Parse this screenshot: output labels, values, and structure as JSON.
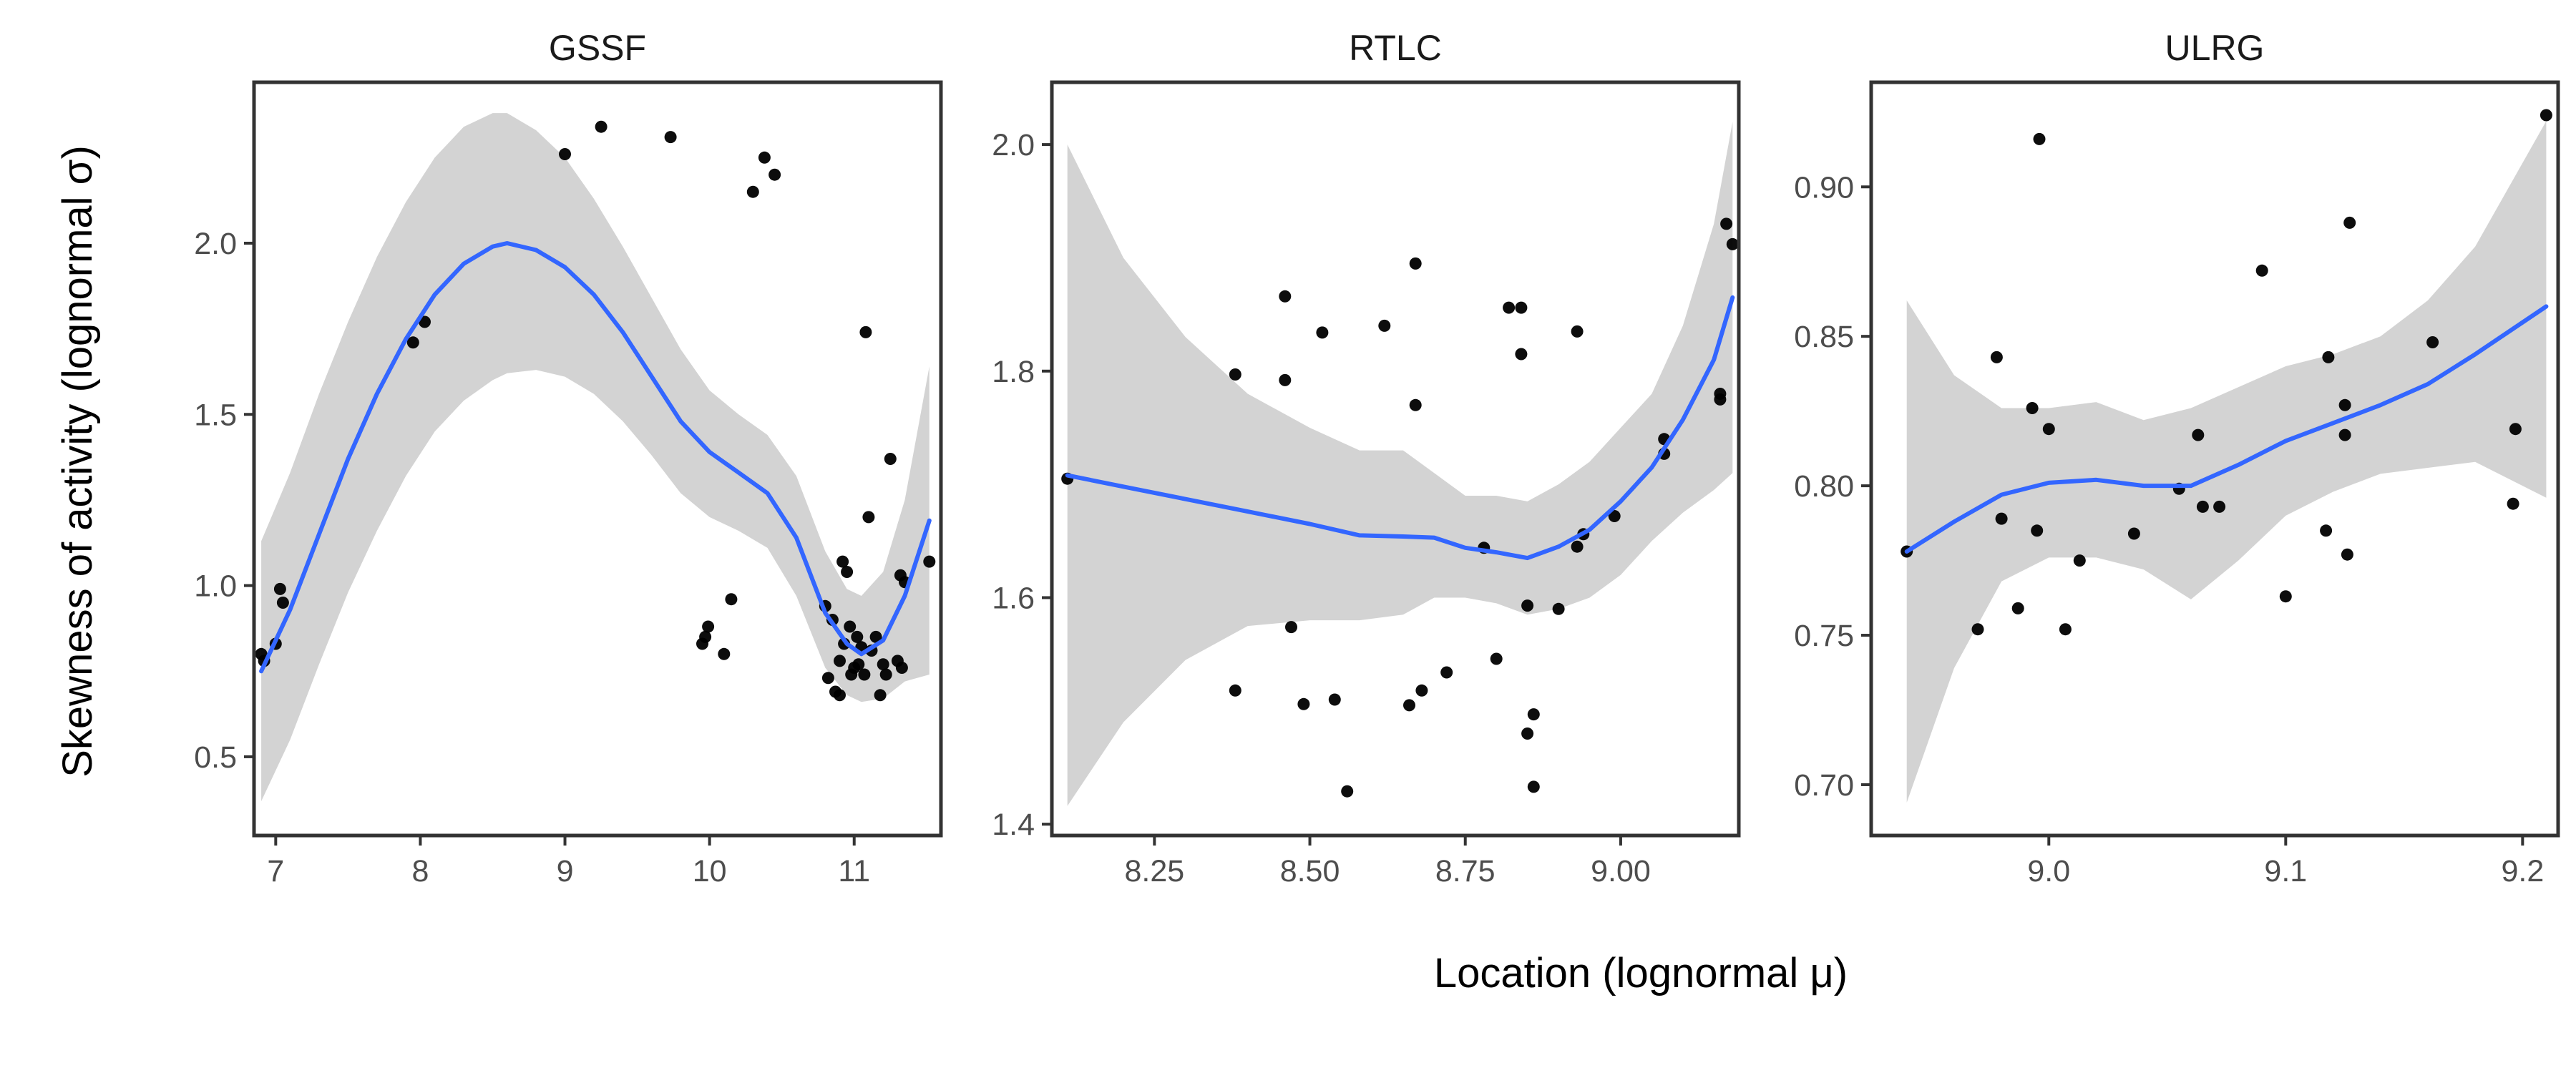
{
  "chart_data": {
    "type": "scatter",
    "xlabel": "Location (lognormal μ)",
    "ylabel": "Skewness of activity (lognormal σ)",
    "colors": {
      "points": "#000000",
      "smooth": "#3366ff",
      "band": "#d3d3d3",
      "frame": "#333333"
    },
    "grid": false,
    "legend": "none",
    "panels": [
      {
        "title": "GSSF",
        "xlim": [
          6.85,
          11.6
        ],
        "ylim": [
          0.27,
          2.47
        ],
        "xticks": [
          7,
          8,
          9,
          10,
          11
        ],
        "xtick_labels": [
          "7",
          "8",
          "9",
          "10",
          "11"
        ],
        "yticks": [
          0.5,
          1.0,
          1.5,
          2.0
        ],
        "ytick_labels": [
          "0.5",
          "1.0",
          "1.5",
          "2.0"
        ],
        "points": [
          [
            6.9,
            0.8
          ],
          [
            6.92,
            0.78
          ],
          [
            7.0,
            0.83
          ],
          [
            7.03,
            0.99
          ],
          [
            7.05,
            0.95
          ],
          [
            7.95,
            1.71
          ],
          [
            8.03,
            1.77
          ],
          [
            9.0,
            2.26
          ],
          [
            9.25,
            2.34
          ],
          [
            9.73,
            2.31
          ],
          [
            9.95,
            0.83
          ],
          [
            9.97,
            0.85
          ],
          [
            9.99,
            0.88
          ],
          [
            10.1,
            0.8
          ],
          [
            10.15,
            0.96
          ],
          [
            10.3,
            2.15
          ],
          [
            10.38,
            2.25
          ],
          [
            10.45,
            2.2
          ],
          [
            10.8,
            0.94
          ],
          [
            10.82,
            0.73
          ],
          [
            10.85,
            0.9
          ],
          [
            10.87,
            0.69
          ],
          [
            10.9,
            0.68
          ],
          [
            10.9,
            0.78
          ],
          [
            10.92,
            1.07
          ],
          [
            10.93,
            0.83
          ],
          [
            10.95,
            1.04
          ],
          [
            10.97,
            0.88
          ],
          [
            10.98,
            0.74
          ],
          [
            11.0,
            0.76
          ],
          [
            11.02,
            0.85
          ],
          [
            11.03,
            0.77
          ],
          [
            11.05,
            0.82
          ],
          [
            11.07,
            0.74
          ],
          [
            11.08,
            1.74
          ],
          [
            11.1,
            1.2
          ],
          [
            11.12,
            0.81
          ],
          [
            11.15,
            0.85
          ],
          [
            11.18,
            0.68
          ],
          [
            11.2,
            0.77
          ],
          [
            11.22,
            0.74
          ],
          [
            11.25,
            1.37
          ],
          [
            11.3,
            0.78
          ],
          [
            11.32,
            1.03
          ],
          [
            11.33,
            0.76
          ],
          [
            11.35,
            1.01
          ],
          [
            11.52,
            1.07
          ]
        ],
        "smooth": [
          [
            6.9,
            0.75
          ],
          [
            7.1,
            0.93
          ],
          [
            7.3,
            1.15
          ],
          [
            7.5,
            1.37
          ],
          [
            7.7,
            1.56
          ],
          [
            7.9,
            1.72
          ],
          [
            8.1,
            1.85
          ],
          [
            8.3,
            1.94
          ],
          [
            8.5,
            1.99
          ],
          [
            8.6,
            2.0
          ],
          [
            8.8,
            1.98
          ],
          [
            9.0,
            1.93
          ],
          [
            9.2,
            1.85
          ],
          [
            9.4,
            1.74
          ],
          [
            9.6,
            1.61
          ],
          [
            9.8,
            1.48
          ],
          [
            10.0,
            1.39
          ],
          [
            10.2,
            1.33
          ],
          [
            10.4,
            1.27
          ],
          [
            10.6,
            1.14
          ],
          [
            10.8,
            0.92
          ],
          [
            10.95,
            0.83
          ],
          [
            11.05,
            0.8
          ],
          [
            11.2,
            0.84
          ],
          [
            11.35,
            0.97
          ],
          [
            11.52,
            1.19
          ]
        ],
        "band_upper": [
          [
            6.9,
            1.13
          ],
          [
            7.1,
            1.33
          ],
          [
            7.3,
            1.56
          ],
          [
            7.5,
            1.77
          ],
          [
            7.7,
            1.96
          ],
          [
            7.9,
            2.12
          ],
          [
            8.1,
            2.25
          ],
          [
            8.3,
            2.34
          ],
          [
            8.5,
            2.38
          ],
          [
            8.6,
            2.38
          ],
          [
            8.8,
            2.33
          ],
          [
            9.0,
            2.25
          ],
          [
            9.2,
            2.13
          ],
          [
            9.4,
            1.99
          ],
          [
            9.6,
            1.84
          ],
          [
            9.8,
            1.69
          ],
          [
            10.0,
            1.57
          ],
          [
            10.2,
            1.5
          ],
          [
            10.4,
            1.44
          ],
          [
            10.6,
            1.32
          ],
          [
            10.8,
            1.1
          ],
          [
            10.95,
            0.99
          ],
          [
            11.05,
            0.97
          ],
          [
            11.2,
            1.04
          ],
          [
            11.35,
            1.25
          ],
          [
            11.52,
            1.64
          ]
        ],
        "band_lower": [
          [
            6.9,
            0.37
          ],
          [
            7.1,
            0.55
          ],
          [
            7.3,
            0.77
          ],
          [
            7.5,
            0.98
          ],
          [
            7.7,
            1.16
          ],
          [
            7.9,
            1.32
          ],
          [
            8.1,
            1.45
          ],
          [
            8.3,
            1.54
          ],
          [
            8.5,
            1.6
          ],
          [
            8.6,
            1.62
          ],
          [
            8.8,
            1.63
          ],
          [
            9.0,
            1.61
          ],
          [
            9.2,
            1.56
          ],
          [
            9.4,
            1.48
          ],
          [
            9.6,
            1.38
          ],
          [
            9.8,
            1.27
          ],
          [
            10.0,
            1.2
          ],
          [
            10.2,
            1.16
          ],
          [
            10.4,
            1.11
          ],
          [
            10.6,
            0.97
          ],
          [
            10.8,
            0.76
          ],
          [
            10.95,
            0.68
          ],
          [
            11.05,
            0.66
          ],
          [
            11.2,
            0.67
          ],
          [
            11.35,
            0.72
          ],
          [
            11.52,
            0.74
          ]
        ]
      },
      {
        "title": "RTLC",
        "xlim": [
          8.085,
          9.19
        ],
        "ylim": [
          1.39,
          2.055
        ],
        "xticks": [
          8.25,
          8.5,
          8.75,
          9.0
        ],
        "xtick_labels": [
          "8.25",
          "8.50",
          "8.75",
          "9.00"
        ],
        "yticks": [
          1.4,
          1.6,
          1.8,
          2.0
        ],
        "ytick_labels": [
          "1.4",
          "1.6",
          "1.8",
          "2.0"
        ],
        "points": [
          [
            8.11,
            1.705
          ],
          [
            8.38,
            1.797
          ],
          [
            8.38,
            1.518
          ],
          [
            8.46,
            1.866
          ],
          [
            8.46,
            1.792
          ],
          [
            8.47,
            1.574
          ],
          [
            8.49,
            1.506
          ],
          [
            8.52,
            1.834
          ],
          [
            8.54,
            1.51
          ],
          [
            8.56,
            1.429
          ],
          [
            8.62,
            1.84
          ],
          [
            8.66,
            1.505
          ],
          [
            8.67,
            1.77
          ],
          [
            8.67,
            1.895
          ],
          [
            8.68,
            1.518
          ],
          [
            8.72,
            1.534
          ],
          [
            8.78,
            1.644
          ],
          [
            8.8,
            1.546
          ],
          [
            8.82,
            1.856
          ],
          [
            8.84,
            1.856
          ],
          [
            8.84,
            1.815
          ],
          [
            8.85,
            1.48
          ],
          [
            8.85,
            1.593
          ],
          [
            8.86,
            1.497
          ],
          [
            8.86,
            1.433
          ],
          [
            8.9,
            1.59
          ],
          [
            8.93,
            1.835
          ],
          [
            8.93,
            1.645
          ],
          [
            8.94,
            1.656
          ],
          [
            8.99,
            1.672
          ],
          [
            9.07,
            1.727
          ],
          [
            9.07,
            1.74
          ],
          [
            9.16,
            1.775
          ],
          [
            9.16,
            1.78
          ],
          [
            9.17,
            1.93
          ],
          [
            9.18,
            1.912
          ]
        ],
        "smooth": [
          [
            8.11,
            1.708
          ],
          [
            8.2,
            1.698
          ],
          [
            8.3,
            1.687
          ],
          [
            8.4,
            1.676
          ],
          [
            8.5,
            1.665
          ],
          [
            8.58,
            1.655
          ],
          [
            8.65,
            1.654
          ],
          [
            8.7,
            1.653
          ],
          [
            8.75,
            1.644
          ],
          [
            8.8,
            1.64
          ],
          [
            8.85,
            1.635
          ],
          [
            8.9,
            1.645
          ],
          [
            8.95,
            1.66
          ],
          [
            9.0,
            1.685
          ],
          [
            9.05,
            1.715
          ],
          [
            9.1,
            1.757
          ],
          [
            9.15,
            1.81
          ],
          [
            9.18,
            1.865
          ]
        ],
        "band_upper": [
          [
            8.11,
            2.0
          ],
          [
            8.2,
            1.9
          ],
          [
            8.3,
            1.83
          ],
          [
            8.4,
            1.78
          ],
          [
            8.5,
            1.75
          ],
          [
            8.58,
            1.73
          ],
          [
            8.65,
            1.73
          ],
          [
            8.7,
            1.71
          ],
          [
            8.75,
            1.69
          ],
          [
            8.8,
            1.69
          ],
          [
            8.85,
            1.685
          ],
          [
            8.9,
            1.7
          ],
          [
            8.95,
            1.72
          ],
          [
            9.0,
            1.75
          ],
          [
            9.05,
            1.78
          ],
          [
            9.1,
            1.84
          ],
          [
            9.15,
            1.93
          ],
          [
            9.18,
            2.02
          ]
        ],
        "band_lower": [
          [
            8.11,
            1.416
          ],
          [
            8.2,
            1.49
          ],
          [
            8.3,
            1.545
          ],
          [
            8.4,
            1.575
          ],
          [
            8.5,
            1.58
          ],
          [
            8.58,
            1.58
          ],
          [
            8.65,
            1.585
          ],
          [
            8.7,
            1.6
          ],
          [
            8.75,
            1.6
          ],
          [
            8.8,
            1.595
          ],
          [
            8.85,
            1.585
          ],
          [
            8.9,
            1.59
          ],
          [
            8.95,
            1.6
          ],
          [
            9.0,
            1.62
          ],
          [
            9.05,
            1.65
          ],
          [
            9.1,
            1.675
          ],
          [
            9.15,
            1.695
          ],
          [
            9.18,
            1.71
          ]
        ]
      },
      {
        "title": "ULRG",
        "xlim": [
          8.925,
          9.215
        ],
        "ylim": [
          0.683,
          0.935
        ],
        "xticks": [
          9.0,
          9.1,
          9.2
        ],
        "xtick_labels": [
          "9.0",
          "9.1",
          "9.2"
        ],
        "yticks": [
          0.7,
          0.75,
          0.8,
          0.85,
          0.9
        ],
        "ytick_labels": [
          "0.70",
          "0.75",
          "0.80",
          "0.85",
          "0.90"
        ],
        "points": [
          [
            8.94,
            0.778
          ],
          [
            8.97,
            0.752
          ],
          [
            8.978,
            0.843
          ],
          [
            8.98,
            0.789
          ],
          [
            8.987,
            0.759
          ],
          [
            8.993,
            0.826
          ],
          [
            8.995,
            0.785
          ],
          [
            8.996,
            0.916
          ],
          [
            9.0,
            0.819
          ],
          [
            9.007,
            0.752
          ],
          [
            9.013,
            0.775
          ],
          [
            9.036,
            0.784
          ],
          [
            9.055,
            0.799
          ],
          [
            9.063,
            0.817
          ],
          [
            9.065,
            0.793
          ],
          [
            9.072,
            0.793
          ],
          [
            9.09,
            0.872
          ],
          [
            9.1,
            0.763
          ],
          [
            9.117,
            0.785
          ],
          [
            9.118,
            0.843
          ],
          [
            9.125,
            0.827
          ],
          [
            9.125,
            0.817
          ],
          [
            9.126,
            0.777
          ],
          [
            9.127,
            0.888
          ],
          [
            9.162,
            0.848
          ],
          [
            9.196,
            0.794
          ],
          [
            9.197,
            0.819
          ],
          [
            9.21,
            0.924
          ]
        ],
        "smooth": [
          [
            8.94,
            0.778
          ],
          [
            8.96,
            0.788
          ],
          [
            8.98,
            0.797
          ],
          [
            9.0,
            0.801
          ],
          [
            9.02,
            0.802
          ],
          [
            9.04,
            0.8
          ],
          [
            9.06,
            0.8
          ],
          [
            9.08,
            0.807
          ],
          [
            9.1,
            0.815
          ],
          [
            9.12,
            0.821
          ],
          [
            9.14,
            0.827
          ],
          [
            9.16,
            0.834
          ],
          [
            9.18,
            0.844
          ],
          [
            9.21,
            0.86
          ]
        ],
        "band_upper": [
          [
            8.94,
            0.862
          ],
          [
            8.96,
            0.837
          ],
          [
            8.98,
            0.826
          ],
          [
            9.0,
            0.826
          ],
          [
            9.02,
            0.828
          ],
          [
            9.04,
            0.822
          ],
          [
            9.06,
            0.826
          ],
          [
            9.08,
            0.833
          ],
          [
            9.1,
            0.84
          ],
          [
            9.12,
            0.844
          ],
          [
            9.14,
            0.85
          ],
          [
            9.16,
            0.862
          ],
          [
            9.18,
            0.88
          ],
          [
            9.21,
            0.922
          ]
        ],
        "band_lower": [
          [
            8.94,
            0.694
          ],
          [
            8.96,
            0.739
          ],
          [
            8.98,
            0.768
          ],
          [
            9.0,
            0.776
          ],
          [
            9.02,
            0.776
          ],
          [
            9.04,
            0.772
          ],
          [
            9.06,
            0.762
          ],
          [
            9.08,
            0.775
          ],
          [
            9.1,
            0.79
          ],
          [
            9.12,
            0.798
          ],
          [
            9.14,
            0.804
          ],
          [
            9.16,
            0.806
          ],
          [
            9.18,
            0.808
          ],
          [
            9.21,
            0.796
          ]
        ]
      }
    ]
  }
}
